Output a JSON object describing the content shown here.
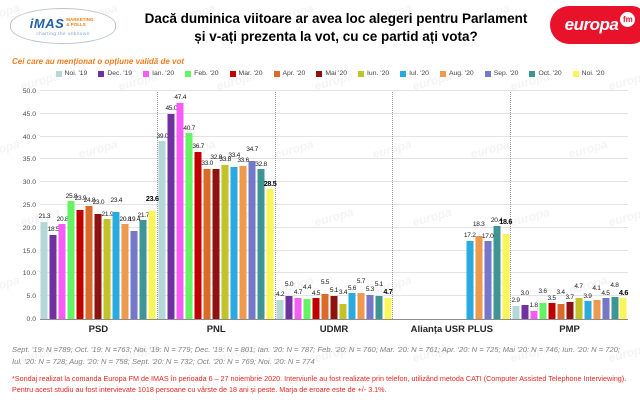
{
  "header": {
    "imas_logo": {
      "name": "iMAS",
      "subtext": "MARKETING & POLLS",
      "tagline": "charting the unknown"
    },
    "title_line1": "Dacă duminica viitoare ar avea loc alegeri pentru Parlament",
    "title_line2": "și v-ați prezenta la vot, cu ce partid ați vota?",
    "europafm_logo": {
      "word": "europa",
      "fm": "fm"
    }
  },
  "subtitle": "Cei care au menționat o opțiune validă de vot",
  "colors": {
    "subtitle_orange": "#f07b20",
    "europafm_red": "#e8132b",
    "imas_blue": "#1f5fa8",
    "footnote_red": "#e8251f"
  },
  "chart_data": {
    "type": "bar",
    "title": "Dacă duminica viitoare ar avea loc alegeri pentru Parlament și v-ați prezenta la vot, cu ce partid ați vota?",
    "categories": [
      "PSD",
      "PNL",
      "UDMR",
      "Alianța USR PLUS",
      "PMP"
    ],
    "series": [
      {
        "name": "Noi. '19",
        "color": "#b6d7d7",
        "values": [
          21.3,
          39.0,
          4.2,
          null,
          2.9
        ]
      },
      {
        "name": "Dec. '19",
        "color": "#7030a0",
        "values": [
          18.5,
          45.0,
          5.0,
          null,
          3.0
        ]
      },
      {
        "name": "Ian. '20",
        "color": "#f75cf7",
        "values": [
          20.8,
          47.4,
          4.7,
          null,
          1.8
        ]
      },
      {
        "name": "Feb. '20",
        "color": "#63f363",
        "values": [
          25.8,
          40.7,
          4.4,
          null,
          3.6
        ]
      },
      {
        "name": "Mar. '20",
        "color": "#c00000",
        "values": [
          23.9,
          36.7,
          4.5,
          null,
          3.5
        ]
      },
      {
        "name": "Apr. '20",
        "color": "#db6a28",
        "values": [
          24.8,
          33.0,
          5.5,
          null,
          3.4
        ]
      },
      {
        "name": "Mai '20",
        "color": "#8e1212",
        "values": [
          23.0,
          32.8,
          5.1,
          null,
          3.7
        ]
      },
      {
        "name": "Iun. '20",
        "color": "#c2c229",
        "values": [
          21.9,
          33.8,
          3.4,
          null,
          4.7
        ]
      },
      {
        "name": "Iul. '20",
        "color": "#29abe2",
        "values": [
          23.4,
          33.4,
          5.6,
          17.2,
          3.9
        ]
      },
      {
        "name": "Aug. '20",
        "color": "#ee9a4d",
        "values": [
          20.8,
          33.6,
          5.7,
          18.3,
          4.1
        ]
      },
      {
        "name": "Sep. '20",
        "color": "#7577c9",
        "values": [
          19.4,
          34.7,
          5.3,
          17.0,
          4.5
        ]
      },
      {
        "name": "Oct. '20",
        "color": "#3f9494",
        "values": [
          21.7,
          32.8,
          5.1,
          20.4,
          4.8
        ]
      },
      {
        "name": "Noi. '20",
        "color": "#fbf558",
        "values": [
          23.6,
          28.5,
          4.7,
          18.6,
          4.6
        ]
      }
    ],
    "ylim": [
      0,
      50
    ],
    "ytick_step": 5,
    "grid": true,
    "legend_position": "top",
    "value_labels": true
  },
  "footnotes": {
    "samples": "Sept. '19: N =789; Oct. '19: N =763; Noi. '19: N = 779; Dec. '19: N = 801; Ian. '20: N = 787; Feb. '20: N = 760; Mar. '20: N = 761; Apr. '20: N = 725; Mai '20: N = 746; Iun. '20: N = 720; Iul. '20: N = 728; Aug. '20: N = 758; Sept. '20: N = 732; Oct. '20: N = 769; Noi. '20: N = 774",
    "methodology": "*Sondaj realizat la comanda Europa FM de IMAS în perioada 6 – 27 noiembrie 2020. Interviurile au fost realizate prin telefon, utilizând metoda CATI (Computer Assisted Telephone Interviewing). Pentru acest studiu au fost intervievate 1018 persoane cu vârste de 18 ani și peste. Marja de eroare este de +/- 3.1%.",
    "watermark": "europa"
  }
}
